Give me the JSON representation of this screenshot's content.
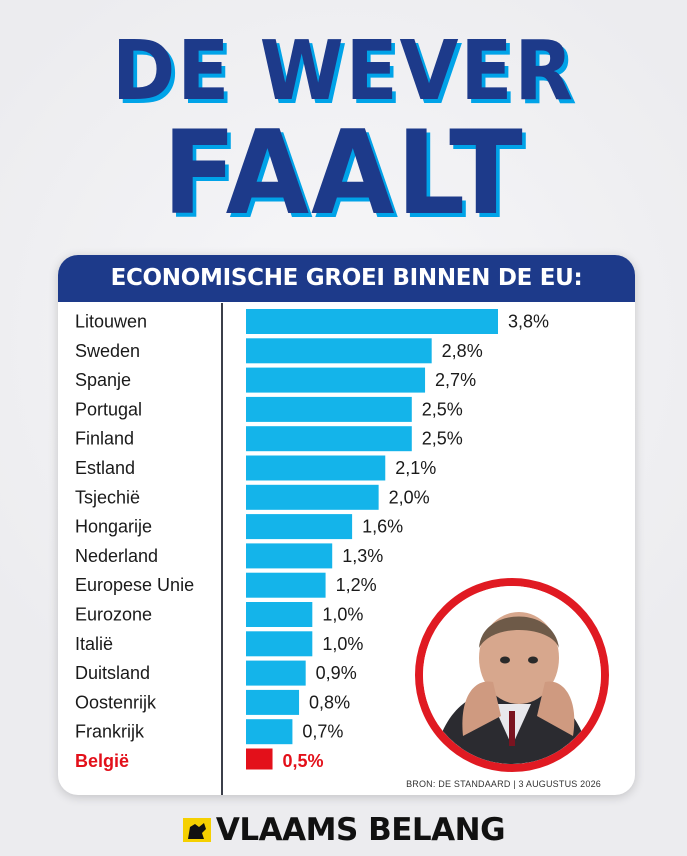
{
  "headline": {
    "line1": "DE WEVER",
    "line2": "FAALT"
  },
  "card": {
    "title": "ECONOMISCHE GROEI BINNEN DE EU:",
    "source": "BRON: DE STANDAARD | 3 AUGUSTUS 2026"
  },
  "footer": {
    "brand": "VLAAMS BELANG"
  },
  "colors": {
    "headline": "#1d3a8a",
    "headline_shadow": "#00a3e8",
    "bar": "#14b4ea",
    "highlight": "#e3101a",
    "title_band": "#1d3a8a"
  },
  "icons": {
    "portrait": "portrait-photo",
    "logo": "lion-flag-icon"
  },
  "chart_data": {
    "type": "bar",
    "orientation": "horizontal",
    "title": "ECONOMISCHE GROEI BINNEN DE EU:",
    "categories": [
      "Litouwen",
      "Sweden",
      "Spanje",
      "Portugal",
      "Finland",
      "Estland",
      "Tsjechië",
      "Hongarije",
      "Nederland",
      "Europese Unie",
      "Eurozone",
      "Italië",
      "Duitsland",
      "Oostenrijk",
      "Frankrijk",
      "België"
    ],
    "values": [
      3.8,
      2.8,
      2.7,
      2.5,
      2.5,
      2.1,
      2.0,
      1.6,
      1.3,
      1.2,
      1.0,
      1.0,
      0.9,
      0.8,
      0.7,
      0.5
    ],
    "value_labels": [
      "3,8%",
      "2,8%",
      "2,7%",
      "2,5%",
      "2,5%",
      "2,1%",
      "2,0%",
      "1,6%",
      "1,3%",
      "1,2%",
      "1,0%",
      "1,0%",
      "0,9%",
      "0,8%",
      "0,7%",
      "0,5%"
    ],
    "highlighted": "België",
    "xlabel": "",
    "ylabel": "",
    "grid": false,
    "legend": "none"
  }
}
